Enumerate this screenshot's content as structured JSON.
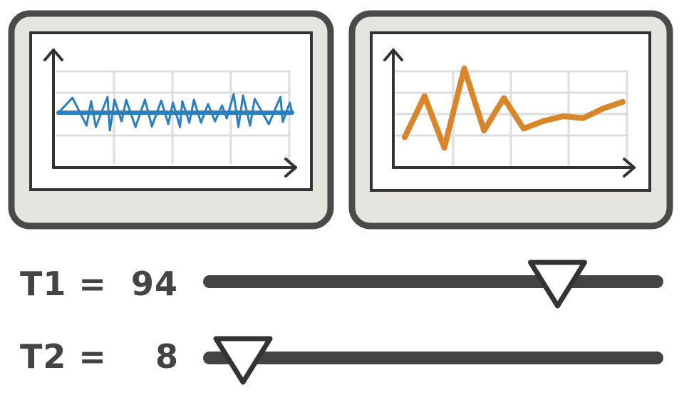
{
  "colors": {
    "frame_outer": "#4a4a4a",
    "frame_fill": "#e6e4df",
    "screen_border": "#333333",
    "screen_bg": "#ffffff",
    "grid": "#dddddd",
    "axis": "#333333",
    "signal_blue": "#2a7fc0",
    "signal_orange": "#d9862a",
    "slider_track": "#444444",
    "slider_thumb_fill": "#ffffff",
    "label_text": "#444444"
  },
  "sliders": [
    {
      "name": "T1",
      "label": "T1 =  94",
      "value": 94,
      "min": 0,
      "max": 120
    },
    {
      "name": "T2",
      "label": "T2 =    8",
      "value": 8,
      "min": 0,
      "max": 120
    }
  ],
  "chart_data": [
    {
      "type": "line",
      "panel": "left-monitor",
      "title": "",
      "xlabel": "",
      "ylabel": "",
      "color": "#2a7fc0",
      "baseline": 0,
      "ylim": [
        -1,
        1
      ],
      "grid": true,
      "x": [
        0,
        6,
        12,
        14,
        16,
        21,
        22,
        24,
        27,
        29,
        33,
        37,
        40,
        44,
        47,
        49,
        52,
        53,
        56,
        58,
        61,
        64,
        67,
        70,
        72,
        75,
        77,
        79,
        82,
        84,
        90,
        95,
        96,
        99,
        100
      ],
      "values": [
        0,
        0.52,
        -0.45,
        0.4,
        -0.5,
        0.55,
        -0.62,
        0.45,
        -0.3,
        0.44,
        -0.5,
        0.45,
        -0.48,
        0.42,
        -0.4,
        0.35,
        -0.5,
        0.4,
        -0.35,
        0.45,
        -0.35,
        0.3,
        -0.3,
        0.25,
        -0.2,
        0.65,
        -0.5,
        0.6,
        -0.45,
        0.48,
        -0.4,
        0.55,
        -0.32,
        0.35,
        0
      ]
    },
    {
      "type": "line",
      "panel": "right-monitor",
      "title": "",
      "xlabel": "",
      "ylabel": "",
      "color": "#d9862a",
      "ylim": [
        0,
        10
      ],
      "grid": true,
      "x": [
        1,
        2,
        3,
        4,
        5,
        6,
        7,
        8,
        9,
        10,
        11,
        12
      ],
      "values": [
        2.5,
        6.8,
        1.4,
        9.7,
        3.2,
        6.6,
        3.4,
        4.2,
        4.7,
        4.5,
        5.5,
        6.2
      ]
    }
  ]
}
